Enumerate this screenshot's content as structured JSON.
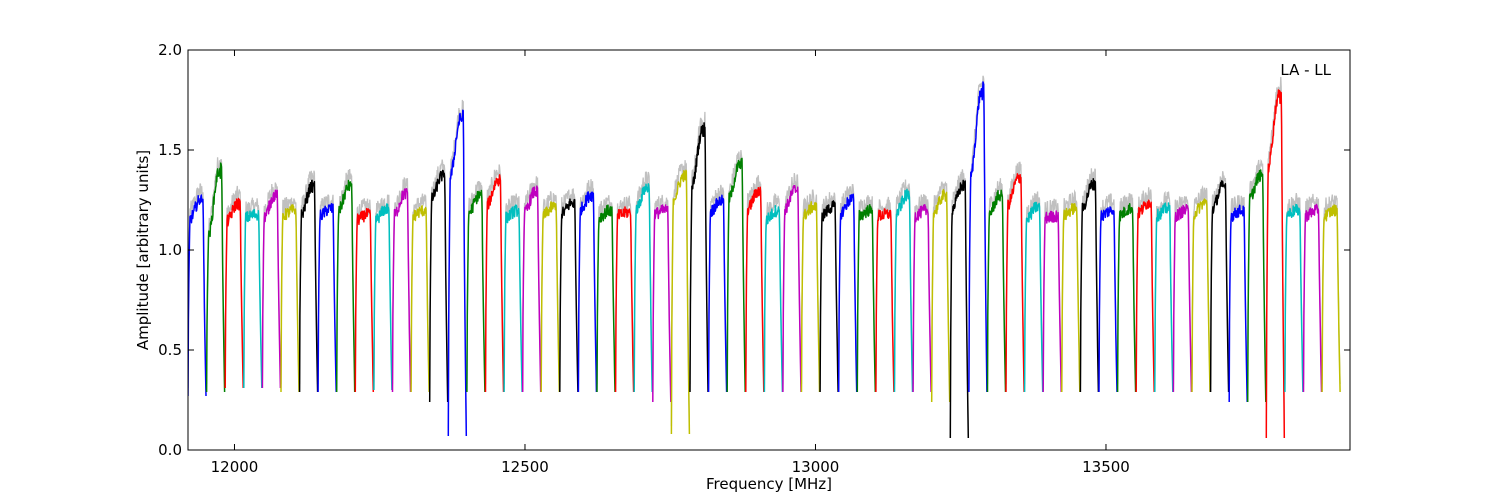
{
  "chart_data": {
    "type": "line",
    "title": "",
    "xlabel": "Frequency [MHz]",
    "ylabel": "Amplitude [arbitrary units]",
    "xlim": [
      11920,
      13920
    ],
    "ylim": [
      0.0,
      2.0
    ],
    "x_ticks": [
      12000,
      12500,
      13000,
      13500
    ],
    "y_ticks": [
      0.0,
      0.5,
      1.0,
      1.5,
      2.0
    ],
    "x_tick_labels": [
      "12000",
      "12500",
      "13000",
      "13500"
    ],
    "y_tick_labels": [
      "0.0",
      "0.5",
      "1.0",
      "1.5",
      "2.0"
    ],
    "grid": false,
    "annotation": "LA - LL",
    "annotation_position": "top-right",
    "series_colors": [
      "#0000ff",
      "#008000",
      "#ff0000",
      "#00bfbf",
      "#bf00bf",
      "#bfbf00",
      "#000000"
    ],
    "background_series_color": "#c0c0c0",
    "channel_width_mhz": 32,
    "first_channel_start_mhz": 11920,
    "channel_count": 62,
    "channel_peak_amplitudes": [
      1.26,
      1.42,
      1.24,
      1.18,
      1.28,
      1.2,
      1.33,
      1.21,
      1.33,
      1.18,
      1.21,
      1.29,
      1.2,
      1.38,
      1.68,
      1.28,
      1.36,
      1.2,
      1.3,
      1.22,
      1.24,
      1.28,
      1.2,
      1.19,
      1.32,
      1.2,
      1.38,
      1.62,
      1.25,
      1.44,
      1.3,
      1.2,
      1.31,
      1.22,
      1.22,
      1.26,
      1.2,
      1.18,
      1.28,
      1.2,
      1.28,
      1.33,
      1.82,
      1.28,
      1.37,
      1.22,
      1.17,
      1.21,
      1.34,
      1.2,
      1.21,
      1.24,
      1.21,
      1.2,
      1.24,
      1.33,
      1.2,
      1.38,
      1.8,
      1.2,
      1.2,
      1.2
    ],
    "channel_min_amplitudes": [
      0.27,
      0.29,
      0.31,
      0.31,
      0.31,
      0.29,
      0.29,
      0.29,
      0.29,
      0.29,
      0.3,
      0.29,
      0.29,
      0.24,
      0.07,
      0.29,
      0.29,
      0.29,
      0.29,
      0.29,
      0.29,
      0.29,
      0.29,
      0.29,
      0.29,
      0.24,
      0.08,
      0.29,
      0.29,
      0.29,
      0.29,
      0.29,
      0.29,
      0.29,
      0.29,
      0.29,
      0.29,
      0.29,
      0.29,
      0.29,
      0.24,
      0.06,
      0.29,
      0.29,
      0.29,
      0.29,
      0.29,
      0.29,
      0.29,
      0.29,
      0.29,
      0.29,
      0.29,
      0.29,
      0.29,
      0.29,
      0.24,
      0.24,
      0.06,
      0.29,
      0.29,
      0.29
    ],
    "channel_plateau_amplitudes": [
      1.15,
      1.05,
      1.14,
      1.16,
      1.16,
      1.17,
      1.17,
      1.17,
      1.19,
      1.15,
      1.15,
      1.17,
      1.17,
      1.25,
      1.35,
      1.18,
      1.22,
      1.16,
      1.18,
      1.17,
      1.18,
      1.2,
      1.16,
      1.17,
      1.2,
      1.18,
      1.25,
      1.3,
      1.19,
      1.25,
      1.2,
      1.15,
      1.2,
      1.17,
      1.17,
      1.18,
      1.17,
      1.17,
      1.18,
      1.17,
      1.18,
      1.2,
      1.35,
      1.18,
      1.22,
      1.15,
      1.16,
      1.17,
      1.2,
      1.17,
      1.17,
      1.18,
      1.17,
      1.17,
      1.18,
      1.2,
      1.17,
      1.25,
      1.4,
      1.18,
      1.17,
      1.17
    ]
  }
}
